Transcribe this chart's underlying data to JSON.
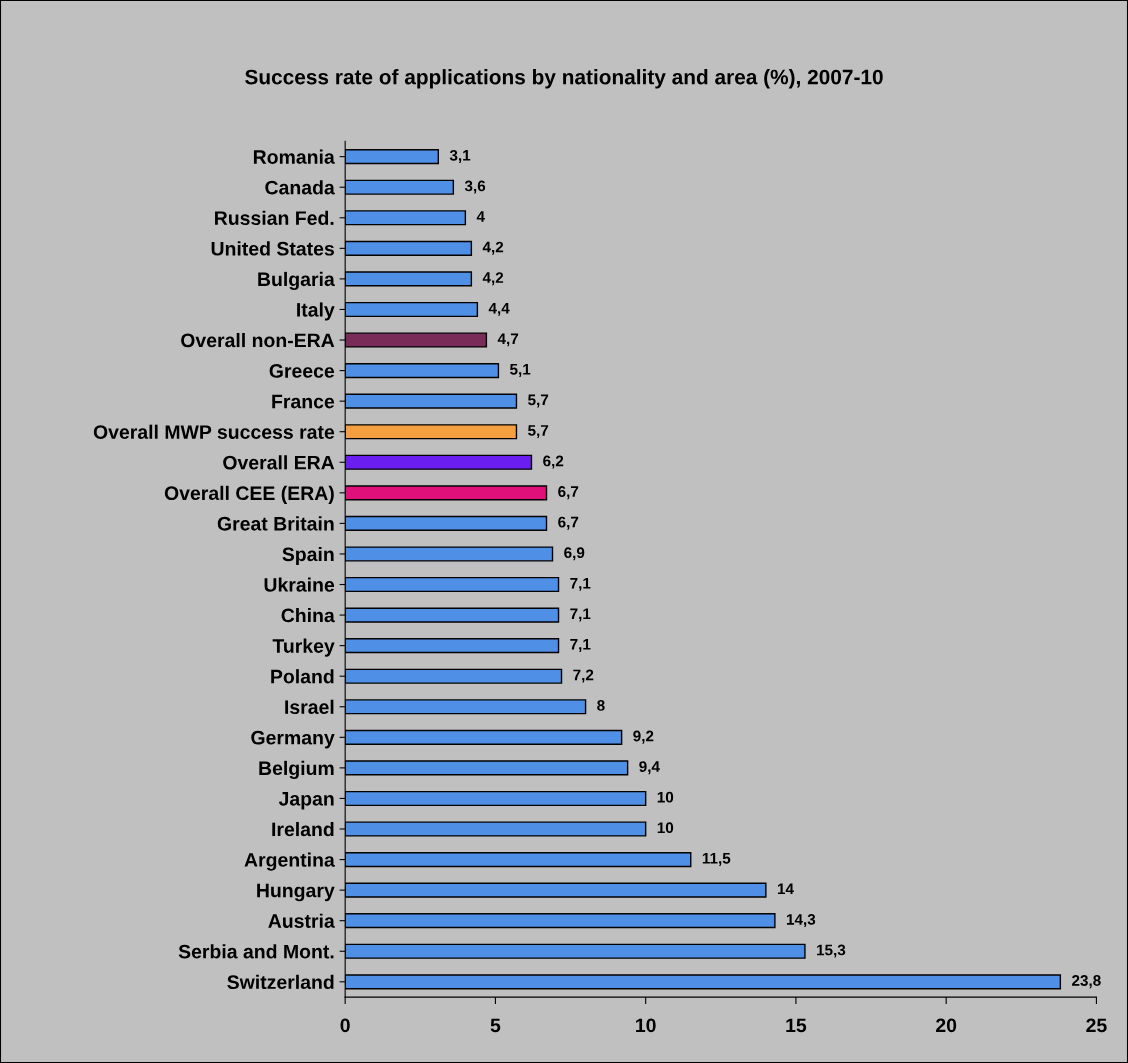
{
  "chart_data": {
    "type": "bar",
    "orientation": "horizontal",
    "title": "Success rate of applications by nationality and area (%), 2007-10",
    "categories": [
      "Romania",
      "Canada",
      "Russian Fed.",
      "United States",
      "Bulgaria",
      "Italy",
      "Overall non-ERA",
      "Greece",
      "France",
      "Overall MWP success rate",
      "Overall ERA",
      "Overall CEE (ERA)",
      "Great Britain",
      "Spain",
      "Ukraine",
      "China",
      "Turkey",
      "Poland",
      "Israel",
      "Germany",
      "Belgium",
      "Japan",
      "Ireland",
      "Argentina",
      "Hungary",
      "Austria",
      "Serbia and Mont.",
      "Switzerland"
    ],
    "values": [
      3.1,
      3.6,
      4,
      4.2,
      4.2,
      4.4,
      4.7,
      5.1,
      5.7,
      5.7,
      6.2,
      6.7,
      6.7,
      6.9,
      7.1,
      7.1,
      7.1,
      7.2,
      8,
      9.2,
      9.4,
      10,
      10,
      11.5,
      14,
      14.3,
      15.3,
      23.8
    ],
    "value_labels": [
      "3,1",
      "3,6",
      "4",
      "4,2",
      "4,2",
      "4,4",
      "4,7",
      "5,1",
      "5,7",
      "5,7",
      "6,2",
      "6,7",
      "6,7",
      "6,9",
      "7,1",
      "7,1",
      "7,1",
      "7,2",
      "8",
      "9,2",
      "9,4",
      "10",
      "10",
      "11,5",
      "14",
      "14,3",
      "15,3",
      "23,8"
    ],
    "colors": [
      "#4f8fe6",
      "#4f8fe6",
      "#4f8fe6",
      "#4f8fe6",
      "#4f8fe6",
      "#4f8fe6",
      "#7a2c58",
      "#4f8fe6",
      "#4f8fe6",
      "#f5a040",
      "#6a1ff0",
      "#e0107a",
      "#4f8fe6",
      "#4f8fe6",
      "#4f8fe6",
      "#4f8fe6",
      "#4f8fe6",
      "#4f8fe6",
      "#4f8fe6",
      "#4f8fe6",
      "#4f8fe6",
      "#4f8fe6",
      "#4f8fe6",
      "#4f8fe6",
      "#4f8fe6",
      "#4f8fe6",
      "#4f8fe6",
      "#4f8fe6"
    ],
    "xlim": [
      0,
      25
    ],
    "xticks": [
      0,
      5,
      10,
      15,
      20,
      25
    ],
    "grid": false
  }
}
